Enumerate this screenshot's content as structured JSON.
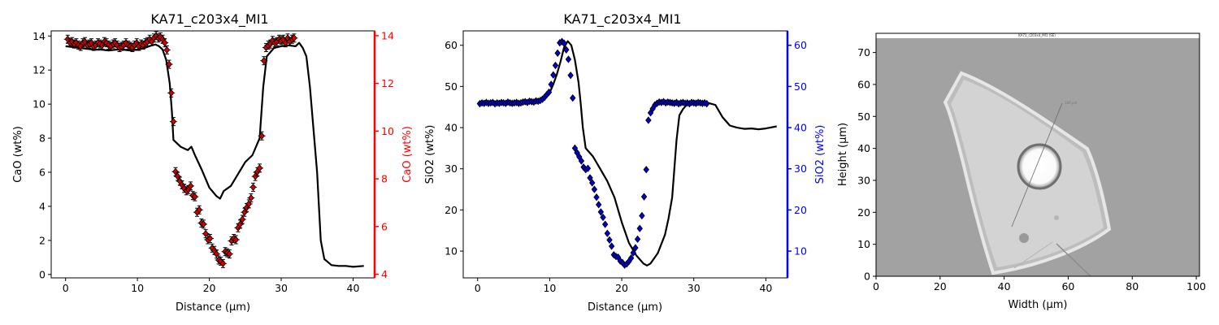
{
  "chart_data": [
    {
      "type": "line",
      "title": "KA71_c203x4_MI1",
      "xlabel": "Distance (µm)",
      "ylabel": "CaO (wt%)",
      "ylabel_right": "CaO (wt%)",
      "xlim": [
        -2,
        43
      ],
      "ylim": [
        -0.2,
        14.3
      ],
      "ylim_right": [
        3.85,
        14.2
      ],
      "xticks": [
        0,
        10,
        20,
        30,
        40
      ],
      "yticks": [
        0,
        2,
        4,
        6,
        8,
        10,
        12,
        14
      ],
      "yticks_right": [
        4,
        6,
        8,
        10,
        12,
        14
      ],
      "colors": {
        "line": "#000000",
        "markers": "#d40000",
        "right_axis": "#ff0000"
      },
      "series": [
        {
          "axis": "left",
          "style": "line",
          "x": [
            0,
            1,
            2,
            3,
            4,
            5,
            6,
            7,
            8,
            9,
            10,
            11,
            12,
            12.5,
            13,
            13.5,
            14,
            14.5,
            14.8,
            15,
            16,
            17,
            17.5,
            18,
            19,
            20,
            21,
            21.5,
            22,
            23,
            24,
            25,
            26,
            27,
            27.5,
            28,
            29,
            30,
            31,
            32,
            32.5,
            33,
            33.5,
            34,
            35,
            35.5,
            36,
            37,
            38,
            39,
            40,
            41.5
          ],
          "y": [
            13.4,
            13.35,
            13.3,
            13.25,
            13.2,
            13.2,
            13.15,
            13.2,
            13.2,
            13.15,
            13.2,
            13.3,
            13.45,
            13.5,
            13.4,
            13.2,
            12.6,
            11.2,
            9.5,
            7.9,
            7.5,
            7.3,
            7.5,
            7.0,
            6.1,
            5.1,
            4.6,
            4.45,
            4.9,
            5.2,
            5.9,
            6.6,
            7.0,
            8.0,
            11.0,
            12.8,
            13.3,
            13.4,
            13.45,
            13.4,
            13.6,
            13.3,
            12.8,
            11.0,
            6.0,
            2.0,
            0.9,
            0.55,
            0.5,
            0.5,
            0.45,
            0.5
          ]
        },
        {
          "axis": "right",
          "style": "markers",
          "error_bars": true,
          "x": [
            0.3,
            0.6,
            0.9,
            1.2,
            1.5,
            1.8,
            2.1,
            2.4,
            2.7,
            3.0,
            3.3,
            3.6,
            3.9,
            4.2,
            4.5,
            4.8,
            5.1,
            5.4,
            5.7,
            6.0,
            6.3,
            6.6,
            6.9,
            7.2,
            7.5,
            7.8,
            8.1,
            8.4,
            8.7,
            9.0,
            9.3,
            9.6,
            9.9,
            10.2,
            10.5,
            10.8,
            11.1,
            11.4,
            11.7,
            12.0,
            12.3,
            12.6,
            12.9,
            13.2,
            13.5,
            13.8,
            14.1,
            14.4,
            14.7,
            15.0,
            15.3,
            15.6,
            15.9,
            16.2,
            16.5,
            16.8,
            17.1,
            17.4,
            17.7,
            18.0,
            18.3,
            18.6,
            18.9,
            19.2,
            19.5,
            19.8,
            20.1,
            20.4,
            20.7,
            21.0,
            21.3,
            21.6,
            21.9,
            22.2,
            22.5,
            22.8,
            23.1,
            23.4,
            23.7,
            24.0,
            24.3,
            24.6,
            24.9,
            25.2,
            25.5,
            25.8,
            26.1,
            26.4,
            26.7,
            27.0,
            27.3,
            27.6,
            27.9,
            28.2,
            28.5,
            28.8,
            29.1,
            29.4,
            29.7,
            30.0,
            30.3,
            30.6,
            30.9,
            31.2,
            31.5,
            31.8
          ],
          "y": [
            13.85,
            13.7,
            13.75,
            13.65,
            13.7,
            13.6,
            13.55,
            13.7,
            13.75,
            13.6,
            13.65,
            13.7,
            13.55,
            13.6,
            13.7,
            13.65,
            13.6,
            13.75,
            13.7,
            13.6,
            13.55,
            13.65,
            13.7,
            13.6,
            13.5,
            13.55,
            13.6,
            13.7,
            13.6,
            13.55,
            13.5,
            13.6,
            13.7,
            13.55,
            13.65,
            13.6,
            13.7,
            13.75,
            13.85,
            13.75,
            13.9,
            14.0,
            13.9,
            13.95,
            13.85,
            13.7,
            13.4,
            12.8,
            11.6,
            10.4,
            8.3,
            8.1,
            7.9,
            7.75,
            7.6,
            7.5,
            7.55,
            7.7,
            7.3,
            7.25,
            6.6,
            6.7,
            6.15,
            6.1,
            5.7,
            5.45,
            5.5,
            5.1,
            5.0,
            4.85,
            4.6,
            4.55,
            4.45,
            4.95,
            4.9,
            4.85,
            5.4,
            5.5,
            5.45,
            5.95,
            6.1,
            6.3,
            6.6,
            6.8,
            6.95,
            7.2,
            7.65,
            8.1,
            8.3,
            8.45,
            9.8,
            12.95,
            13.5,
            13.6,
            13.65,
            13.8,
            13.7,
            13.75,
            13.85,
            13.8,
            13.85,
            13.7,
            13.9,
            13.75,
            13.85,
            13.9
          ]
        }
      ]
    },
    {
      "type": "line",
      "title": "KA71_c203x4_MI1",
      "xlabel": "Distance (µm)",
      "ylabel": "SiO2 (wt%)",
      "ylabel_right": "SiO2 (wt%)",
      "xlim": [
        -2,
        43
      ],
      "ylim": [
        3.5,
        63.5
      ],
      "ylim_right": [
        3.5,
        63.5
      ],
      "xticks": [
        0,
        10,
        20,
        30,
        40
      ],
      "yticks": [
        10,
        20,
        30,
        40,
        50,
        60
      ],
      "yticks_right": [
        10,
        20,
        30,
        40,
        50,
        60
      ],
      "colors": {
        "line": "#000000",
        "markers": "#0000cc",
        "right_axis": "#0000ff"
      },
      "series": [
        {
          "axis": "left",
          "style": "line",
          "x": [
            0,
            1,
            2,
            3,
            4,
            5,
            6,
            7,
            8,
            9,
            9.5,
            10,
            10.5,
            11,
            11.5,
            12,
            12.5,
            13,
            13.5,
            14,
            14.3,
            14.6,
            15,
            16,
            17,
            18,
            19,
            20,
            21,
            22,
            23,
            23.5,
            24,
            25,
            26,
            26.5,
            27,
            27.3,
            27.6,
            28,
            28.5,
            29,
            30,
            31,
            32,
            33,
            34,
            35,
            36,
            37,
            38,
            39,
            40,
            41.5
          ],
          "y": [
            46,
            46,
            46,
            46,
            46.1,
            46.2,
            46.3,
            46.3,
            46.4,
            46.8,
            47.5,
            48.5,
            50.5,
            53,
            56,
            59.5,
            61,
            60,
            56.5,
            51,
            46,
            40,
            35,
            33,
            30,
            27,
            23,
            17,
            12,
            9,
            7,
            6.5,
            7,
            9.5,
            14,
            18,
            23,
            30,
            37,
            43,
            44.5,
            45.5,
            46,
            46.2,
            46,
            45.5,
            42.5,
            40.5,
            40,
            39.7,
            39.8,
            39.6,
            39.8,
            40.3
          ]
        },
        {
          "axis": "right",
          "style": "markers",
          "x": [
            0.3,
            0.6,
            0.9,
            1.2,
            1.5,
            1.8,
            2.1,
            2.4,
            2.7,
            3.0,
            3.3,
            3.6,
            3.9,
            4.2,
            4.5,
            4.8,
            5.1,
            5.4,
            5.7,
            6.0,
            6.3,
            6.6,
            6.9,
            7.2,
            7.5,
            7.8,
            8.1,
            8.4,
            8.7,
            9.0,
            9.3,
            9.6,
            9.9,
            10.2,
            10.5,
            10.8,
            11.1,
            11.4,
            11.7,
            12.0,
            12.3,
            12.6,
            12.9,
            13.2,
            13.5,
            13.8,
            14.1,
            14.4,
            14.7,
            15.0,
            15.3,
            15.6,
            15.9,
            16.2,
            16.5,
            16.8,
            17.1,
            17.4,
            17.7,
            18.0,
            18.3,
            18.6,
            18.9,
            19.2,
            19.5,
            19.8,
            20.1,
            20.4,
            20.7,
            21.0,
            21.3,
            21.6,
            21.9,
            22.2,
            22.5,
            22.8,
            23.1,
            23.4,
            23.7,
            24.0,
            24.3,
            24.6,
            24.9,
            25.2,
            25.5,
            25.8,
            26.1,
            26.4,
            26.7,
            27.0,
            27.3,
            27.6,
            27.9,
            28.2,
            28.5,
            28.8,
            29.1,
            29.4,
            29.7,
            30.0,
            30.3,
            30.6,
            30.9,
            31.2,
            31.5,
            31.8
          ],
          "y": [
            45.8,
            46.0,
            45.9,
            46.1,
            45.9,
            46.0,
            46.1,
            45.8,
            46.0,
            45.9,
            46.1,
            46.0,
            45.9,
            46.2,
            46.0,
            45.9,
            46.0,
            46.1,
            45.9,
            46.0,
            46.2,
            46.3,
            46.1,
            46.4,
            46.3,
            46.2,
            46.5,
            46.4,
            46.6,
            46.9,
            47.4,
            48.0,
            48.6,
            50.5,
            52.8,
            55.1,
            58.1,
            60.6,
            60.9,
            60.5,
            58.9,
            56.6,
            52.7,
            47.2,
            35.0,
            33.9,
            32.9,
            31.9,
            30.4,
            29.8,
            30.1,
            27.8,
            26.6,
            25.0,
            23.1,
            21.3,
            19.5,
            18.2,
            16.5,
            14.3,
            12.7,
            11.2,
            9.1,
            8.7,
            8.5,
            7.6,
            7.2,
            6.6,
            6.9,
            7.5,
            8.3,
            9.6,
            10.8,
            12.9,
            15.5,
            18.6,
            23.2,
            29.8,
            41.8,
            43.6,
            44.6,
            45.5,
            45.9,
            46.2,
            46.1,
            46.3,
            46.0,
            46.2,
            46.1,
            46.0,
            45.9,
            46.1,
            45.8,
            46.0,
            46.1,
            45.9,
            46.0,
            45.8,
            46.1,
            46.0,
            45.9,
            46.1,
            46.0,
            45.9,
            46.0,
            45.8
          ]
        }
      ]
    },
    {
      "type": "image",
      "xlabel": "Width (µm)",
      "ylabel": "Height (µm)",
      "image_title": "KA71_c203x4_MI1 (SE)",
      "image_note": "100 µm",
      "xlim": [
        0,
        101
      ],
      "ylim": [
        0,
        76
      ],
      "xticks": [
        0,
        20,
        40,
        60,
        80,
        100
      ],
      "yticks": [
        0,
        10,
        20,
        30,
        40,
        50,
        60,
        70
      ],
      "colors": {
        "background": "#a2a2a2",
        "inclusion": "#d3d3d3"
      }
    }
  ]
}
